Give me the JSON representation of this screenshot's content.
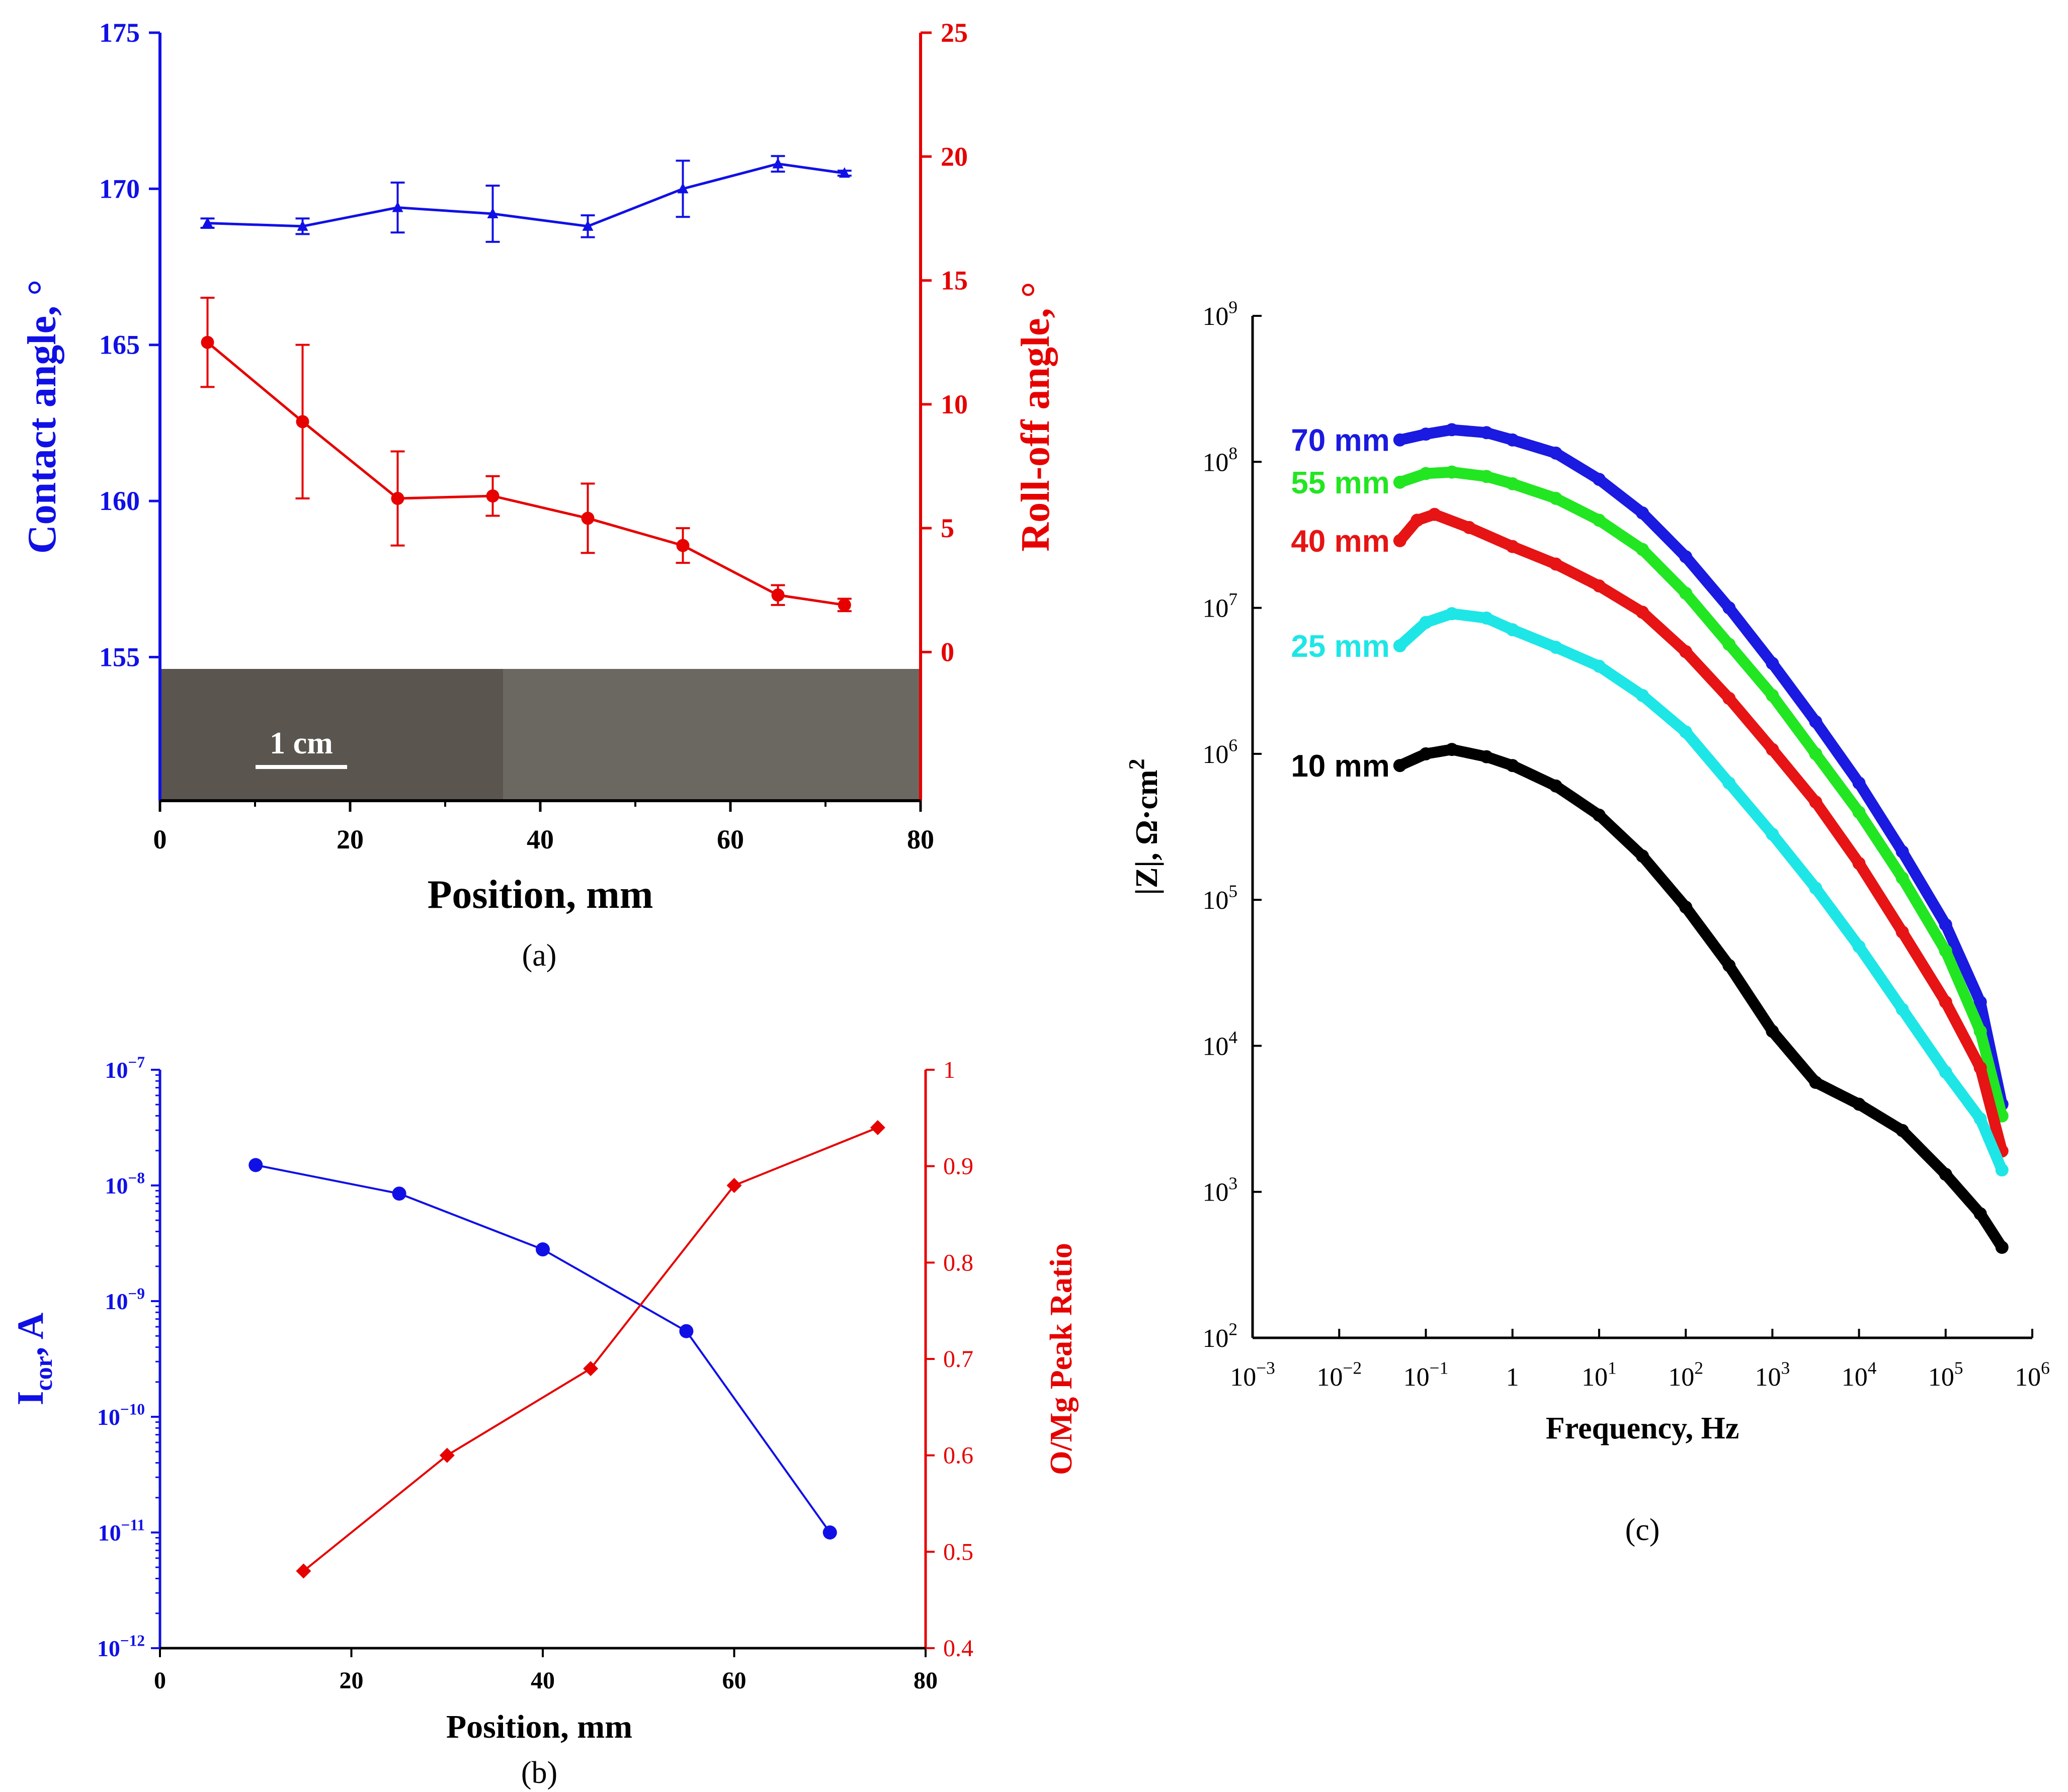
{
  "chart_data": [
    {
      "panel": "a",
      "type": "line",
      "caption": "(a)",
      "xlabel": "Position, mm",
      "xlim": [
        0,
        80
      ],
      "xticks": [
        "0",
        "20",
        "40",
        "60",
        "80"
      ],
      "ylabel_left": "Contact angle, °",
      "ylim_left": [
        150.4,
        175
      ],
      "yticks_left": [
        "155",
        "160",
        "165",
        "170",
        "175"
      ],
      "ylabel_right": "Roll-off angle, °",
      "ylim_right": [
        -6,
        25
      ],
      "yticks_right": [
        "0",
        "5",
        "10",
        "15",
        "20",
        "25"
      ],
      "inset_scale_label": "1 cm",
      "series": [
        {
          "name": "Contact angle",
          "axis": "left",
          "color": "#1010e6",
          "marker": "triangle",
          "x": [
            5,
            15,
            25,
            35,
            45,
            55,
            65,
            72
          ],
          "values": [
            168.9,
            168.8,
            169.4,
            169.2,
            168.8,
            170.0,
            170.8,
            170.5
          ],
          "errors": [
            0.15,
            0.25,
            0.8,
            0.9,
            0.35,
            0.9,
            0.25,
            0.08
          ]
        },
        {
          "name": "Roll-off angle",
          "axis": "right",
          "color": "#e60000",
          "marker": "circle",
          "x": [
            5,
            15,
            25,
            35,
            45,
            55,
            65,
            72
          ],
          "values": [
            12.5,
            9.3,
            6.2,
            6.3,
            5.4,
            4.3,
            2.3,
            1.9
          ],
          "errors": [
            1.8,
            3.1,
            1.9,
            0.8,
            1.4,
            0.7,
            0.4,
            0.25
          ]
        }
      ]
    },
    {
      "panel": "b",
      "type": "line",
      "caption": "(b)",
      "xlabel": "Position, mm",
      "xlim": [
        0,
        80
      ],
      "xticks": [
        "0",
        "20",
        "40",
        "60",
        "80"
      ],
      "ylabel_left_main": "I",
      "ylabel_left_sub": "cor",
      "ylabel_left_rest": ", A",
      "yscale_left": "log",
      "ylim_left_exp": [
        -12,
        -7
      ],
      "yticks_left": [
        {
          "base": "10",
          "exp": "−12"
        },
        {
          "base": "10",
          "exp": "−11"
        },
        {
          "base": "10",
          "exp": "−10"
        },
        {
          "base": "10",
          "exp": "−9"
        },
        {
          "base": "10",
          "exp": "−8"
        },
        {
          "base": "10",
          "exp": "−7"
        }
      ],
      "ylabel_right": "O/Mg Peak Ratio",
      "ylim_right": [
        0.4,
        1
      ],
      "yticks_right": [
        "0.4",
        "0.5",
        "0.6",
        "0.7",
        "0.8",
        "0.9",
        "1"
      ],
      "series": [
        {
          "name": "Icor",
          "axis": "left",
          "color": "#1010e6",
          "marker": "circle",
          "x": [
            10,
            25,
            40,
            55,
            70
          ],
          "values": [
            1.5e-08,
            8.5e-09,
            2.8e-09,
            5.5e-10,
            1e-11
          ]
        },
        {
          "name": "O/Mg Peak Ratio",
          "axis": "right",
          "color": "#e60000",
          "marker": "diamond",
          "x": [
            15,
            30,
            45,
            60,
            75
          ],
          "values": [
            0.48,
            0.6,
            0.69,
            0.88,
            0.94
          ]
        }
      ]
    },
    {
      "panel": "c",
      "type": "scatter",
      "caption": "(c)",
      "xlabel": "Frequency, Hz",
      "xscale": "log",
      "xlim_exp": [
        -3,
        6
      ],
      "xticks": [
        {
          "base": "10",
          "exp": "−3"
        },
        {
          "base": "10",
          "exp": "−2"
        },
        {
          "base": "10",
          "exp": "−1"
        },
        {
          "base": "1",
          "exp": ""
        },
        {
          "base": "10",
          "exp": "1"
        },
        {
          "base": "10",
          "exp": "2"
        },
        {
          "base": "10",
          "exp": "3"
        },
        {
          "base": "10",
          "exp": "4"
        },
        {
          "base": "10",
          "exp": "5"
        },
        {
          "base": "10",
          "exp": "6"
        }
      ],
      "ylabel_main": "|Z|, Ω·cm",
      "ylabel_sup": "2",
      "yscale": "log",
      "ylim_exp": [
        2,
        9
      ],
      "yticks": [
        {
          "base": "10",
          "exp": "2"
        },
        {
          "base": "10",
          "exp": "3"
        },
        {
          "base": "10",
          "exp": "4"
        },
        {
          "base": "10",
          "exp": "5"
        },
        {
          "base": "10",
          "exp": "6"
        },
        {
          "base": "10",
          "exp": "7"
        },
        {
          "base": "10",
          "exp": "8"
        },
        {
          "base": "10",
          "exp": "9"
        }
      ],
      "series": [
        {
          "name": "70 mm",
          "color": "#1a1ae0",
          "x_log": [
            -1.3,
            -1.0,
            -0.7,
            -0.3,
            0.0,
            0.5,
            1.0,
            1.5,
            2.0,
            2.5,
            3.0,
            3.5,
            4.0,
            4.5,
            5.0,
            5.4,
            5.65
          ],
          "y_log": [
            8.15,
            8.19,
            8.22,
            8.2,
            8.15,
            8.06,
            7.88,
            7.65,
            7.35,
            7.0,
            6.62,
            6.22,
            5.8,
            5.33,
            4.83,
            4.3,
            3.6
          ]
        },
        {
          "name": "55 mm",
          "color": "#22e622",
          "x_log": [
            -1.3,
            -1.0,
            -0.7,
            -0.3,
            0.0,
            0.5,
            1.0,
            1.5,
            2.0,
            2.5,
            3.0,
            3.5,
            4.0,
            4.5,
            5.0,
            5.4,
            5.65
          ],
          "y_log": [
            7.86,
            7.92,
            7.93,
            7.9,
            7.85,
            7.75,
            7.6,
            7.4,
            7.1,
            6.75,
            6.4,
            6.0,
            5.6,
            5.15,
            4.65,
            4.1,
            3.52
          ]
        },
        {
          "name": "40 mm",
          "color": "#e61414",
          "x_log": [
            -1.3,
            -1.1,
            -0.9,
            -0.5,
            0.0,
            0.5,
            1.0,
            1.5,
            2.0,
            2.5,
            3.0,
            3.5,
            4.0,
            4.5,
            5.0,
            5.4,
            5.65
          ],
          "y_log": [
            7.46,
            7.6,
            7.64,
            7.55,
            7.42,
            7.3,
            7.15,
            6.97,
            6.7,
            6.38,
            6.03,
            5.67,
            5.25,
            4.78,
            4.3,
            3.85,
            3.28
          ]
        },
        {
          "name": "25 mm",
          "color": "#1ee6e6",
          "x_log": [
            -1.3,
            -1.0,
            -0.7,
            -0.3,
            0.0,
            0.5,
            1.0,
            1.5,
            2.0,
            2.5,
            3.0,
            3.5,
            4.0,
            4.5,
            5.0,
            5.4,
            5.65
          ],
          "y_log": [
            6.74,
            6.9,
            6.96,
            6.93,
            6.85,
            6.73,
            6.6,
            6.4,
            6.15,
            5.8,
            5.45,
            5.08,
            4.68,
            4.25,
            3.82,
            3.5,
            3.15
          ]
        },
        {
          "name": "10 mm",
          "color": "#000000",
          "x_log": [
            -1.3,
            -1.0,
            -0.7,
            -0.3,
            0.0,
            0.5,
            1.0,
            1.5,
            2.0,
            2.5,
            3.0,
            3.5,
            4.0,
            4.5,
            5.0,
            5.4,
            5.65
          ],
          "y_log": [
            5.92,
            6.0,
            6.03,
            5.98,
            5.92,
            5.78,
            5.58,
            5.3,
            4.95,
            4.55,
            4.1,
            3.75,
            3.6,
            3.42,
            3.12,
            2.85,
            2.62
          ]
        }
      ]
    }
  ]
}
